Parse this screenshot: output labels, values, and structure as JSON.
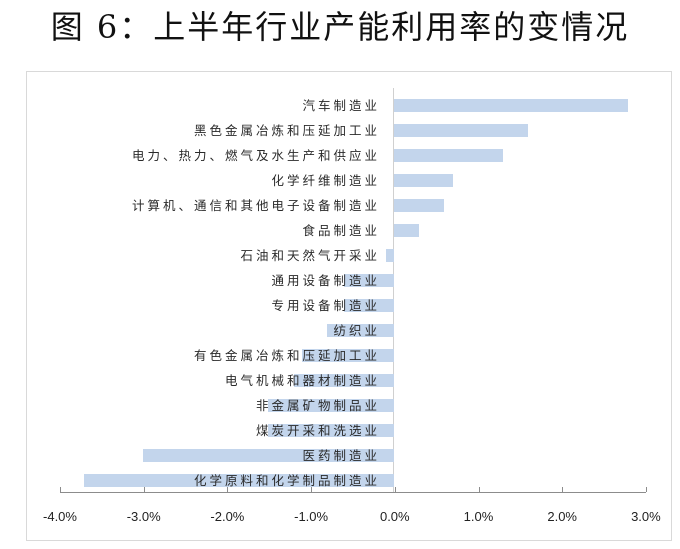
{
  "title": "图 6：上半年行业产能利用率的变情况",
  "chart_data": {
    "type": "bar",
    "orientation": "horizontal",
    "title": "图 6：上半年行业产能利用率的变情况",
    "xlabel": "",
    "ylabel": "",
    "xlim": [
      -4.0,
      3.0
    ],
    "x_ticks": [
      "-4.0%",
      "-3.0%",
      "-2.0%",
      "-1.0%",
      "0.0%",
      "1.0%",
      "2.0%",
      "3.0%"
    ],
    "grid": false,
    "legend": null,
    "bar_color": "#c3d5ec",
    "unit": "%",
    "categories": [
      "汽车制造业",
      "黑色金属冶炼和压延加工业",
      "电力、热力、燃气及水生产和供应业",
      "化学纤维制造业",
      "计算机、通信和其他电子设备制造业",
      "食品制造业",
      "石油和天然气开采业",
      "通用设备制造业",
      "专用设备制造业",
      "纺织业",
      "有色金属冶炼和压延加工业",
      "电气机械和器材制造业",
      "非金属矿物制品业",
      "煤炭开采和洗选业",
      "医药制造业",
      "化学原料和化学制品制造业"
    ],
    "values": [
      2.8,
      1.6,
      1.3,
      0.7,
      0.6,
      0.3,
      -0.1,
      -0.6,
      -0.6,
      -0.8,
      -1.1,
      -1.2,
      -1.5,
      -1.5,
      -3.0,
      -3.7
    ]
  }
}
